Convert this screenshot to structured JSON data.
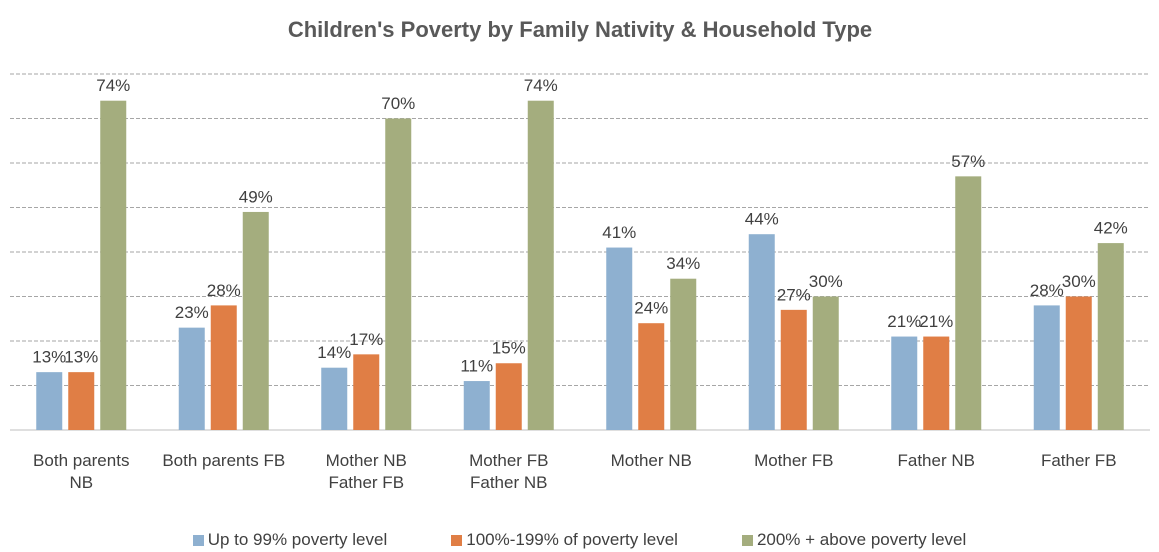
{
  "chart_data": {
    "type": "bar",
    "title": "Children's Poverty by Family Nativity & Household Type",
    "categories": [
      "Both parents NB",
      "Both parents FB",
      "Mother NB Father FB",
      "Mother FB Father NB",
      "Mother NB",
      "Mother FB",
      "Father NB",
      "Father FB"
    ],
    "series": [
      {
        "name": "Up to 99% poverty level",
        "color": "#8eb0d0",
        "values": [
          13,
          23,
          14,
          11,
          41,
          44,
          21,
          28
        ],
        "value_labels": [
          "13%",
          "23%",
          "14%",
          "11%",
          "41%",
          "44%",
          "21%",
          "28%"
        ]
      },
      {
        "name": "100%-199% of poverty level",
        "color": "#e07e45",
        "values": [
          13,
          28,
          17,
          15,
          24,
          27,
          21,
          30
        ],
        "value_labels": [
          "13%",
          "28%",
          "17%",
          "15%",
          "24%",
          "27%",
          "21%",
          "30%"
        ]
      },
      {
        "name": "200% + above poverty level",
        "color": "#a4ad7e",
        "values": [
          74,
          49,
          70,
          74,
          34,
          30,
          57,
          42
        ],
        "value_labels": [
          "74%",
          "49%",
          "70%",
          "74%",
          "34%",
          "30%",
          "57%",
          "42%"
        ]
      }
    ],
    "ylim": [
      0,
      80
    ],
    "yticks": [
      0,
      10,
      20,
      30,
      40,
      50,
      60,
      70,
      80
    ],
    "grid": true,
    "legend": "bottom"
  }
}
